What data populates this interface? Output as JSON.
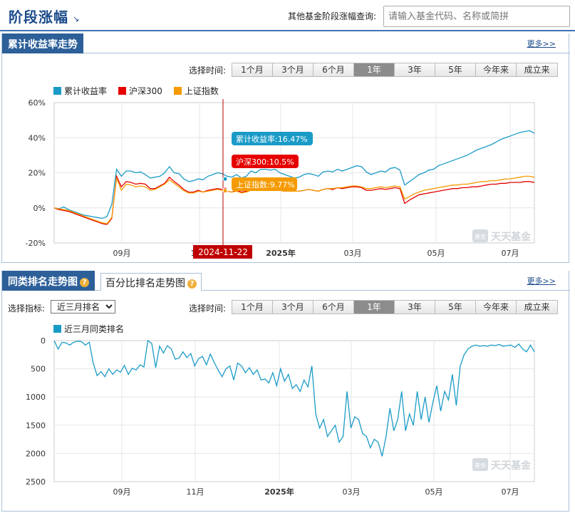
{
  "header": {
    "title": "阶段涨幅",
    "query_label": "其他基金阶段涨幅查询:",
    "query_placeholder": "请输入基金代码、名称或简拼"
  },
  "trend_section": {
    "tab_label": "累计收益率走势",
    "more_label": "更多>>",
    "period_label": "选择时间:",
    "periods": [
      "1个月",
      "3个月",
      "6个月",
      "1年",
      "3年",
      "5年",
      "今年来",
      "成立来"
    ],
    "active_period": "1年",
    "crosshair_date": "2024-11-22",
    "tooltips": [
      {
        "text": "累计收益率:16.47%",
        "color": "#1a9bc7"
      },
      {
        "text": "沪深300:10.5%",
        "color": "#e60000"
      },
      {
        "text": "上证指数:9.77%",
        "color": "#f59a00"
      }
    ]
  },
  "rank_section": {
    "tab_active_label": "同类排名走势图",
    "tab_other_label": "百分比排名走势图",
    "more_label": "更多>>",
    "indicator_label": "选择指标:",
    "indicator_value": "近三月排名",
    "period_label": "选择时间:",
    "periods": [
      "1个月",
      "3个月",
      "6个月",
      "1年",
      "3年",
      "5年",
      "今年来",
      "成立来"
    ],
    "active_period": "1年"
  },
  "watermark": {
    "text": "天天基金",
    "sub": "基金"
  },
  "chart_data": [
    {
      "type": "line",
      "y_unit": "%",
      "ylim": [
        -20,
        60
      ],
      "y_ticks": [
        "60%",
        "40%",
        "20%",
        "0%",
        "-20%"
      ],
      "x_ticks": [
        "09月",
        "11月",
        "2025年",
        "03月",
        "05月",
        "07月"
      ],
      "legend_position": "top-left",
      "series": [
        {
          "name": "累计收益率",
          "color": "#1a9bc7",
          "values": [
            0,
            -0.5,
            0.5,
            -1,
            -2,
            -3,
            -4,
            -4.5,
            -5,
            -5.5,
            -6,
            -5,
            2,
            22,
            18,
            21,
            21,
            20,
            20.5,
            19,
            17,
            17.5,
            18,
            20,
            23.5,
            20,
            19.5,
            16.5,
            15,
            15.5,
            16.5,
            16,
            18,
            19,
            20,
            19.5,
            18,
            17.5,
            19,
            17,
            18,
            21,
            20,
            22,
            22,
            21.5,
            22,
            20,
            19,
            18,
            17,
            17.5,
            19,
            19.5,
            19,
            18,
            20.5,
            21,
            20.5,
            22,
            21,
            22,
            23,
            24,
            23.5,
            20.5,
            19,
            20,
            21,
            20.5,
            22.5,
            23,
            21.5,
            13,
            15,
            17,
            19,
            20,
            21.5,
            22,
            24,
            25,
            26,
            27,
            28,
            29,
            30,
            31.5,
            33,
            34,
            35,
            36,
            37.5,
            39,
            40,
            41,
            42,
            43,
            43.5,
            44,
            42.5
          ]
        },
        {
          "name": "沪深300",
          "color": "#e60000",
          "values": [
            0,
            -1,
            -1.5,
            -2,
            -3,
            -4,
            -5,
            -6,
            -7,
            -8,
            -9,
            -9.5,
            -6,
            18,
            12,
            15,
            14.5,
            13.5,
            14,
            13.5,
            11,
            11,
            12.5,
            14,
            17.5,
            15,
            13,
            10.5,
            9,
            9,
            10,
            9,
            10,
            10.5,
            11,
            10.5,
            9.5,
            9,
            10,
            9,
            9.5,
            10.5,
            11,
            11,
            11,
            10.5,
            11,
            10,
            9.5,
            9.5,
            9.5,
            9.5,
            10,
            10.5,
            10,
            9.5,
            10.5,
            11,
            10.5,
            11.5,
            11,
            11.5,
            12,
            12,
            11.5,
            10,
            10,
            10.5,
            11,
            10.5,
            11,
            11.5,
            11,
            2.5,
            4.5,
            6,
            7.5,
            8,
            8.5,
            9,
            9.5,
            10,
            10.5,
            11,
            11,
            11.5,
            11.5,
            12,
            12,
            12.5,
            13,
            13.5,
            13.5,
            14,
            14,
            14.5,
            14.5,
            14.5,
            15,
            15,
            14.5
          ]
        },
        {
          "name": "上证指数",
          "color": "#f59a00",
          "values": [
            0,
            -0.5,
            -1,
            -1.5,
            -2.5,
            -3.5,
            -4.5,
            -5.5,
            -6.5,
            -7.5,
            -8.5,
            -9,
            -5.5,
            17,
            10,
            13.5,
            13,
            12,
            12.5,
            12,
            10,
            10.5,
            12,
            13.5,
            16,
            14,
            12,
            9.77,
            8.5,
            8.5,
            9.5,
            9,
            9.5,
            10,
            10.5,
            10,
            9.5,
            9,
            9.5,
            8.5,
            9,
            10,
            10.5,
            10.5,
            11,
            10.5,
            11,
            10,
            9.5,
            9.5,
            9.5,
            9.5,
            10,
            10.5,
            10,
            9.5,
            10.5,
            11,
            11,
            11.5,
            11.5,
            12,
            12.5,
            12.5,
            12,
            11,
            11,
            11.5,
            12,
            11.5,
            12,
            12.5,
            12,
            5,
            6.5,
            8,
            9,
            10,
            10.5,
            11,
            11.5,
            12,
            12.5,
            13,
            13,
            13.5,
            13.5,
            14,
            14.5,
            15,
            15,
            15.5,
            15.5,
            16,
            16.5,
            16.5,
            17,
            17.5,
            18,
            18,
            17.5
          ]
        }
      ]
    },
    {
      "type": "line",
      "ylim": [
        0,
        2500
      ],
      "y_inverted": true,
      "y_ticks": [
        "0",
        "500",
        "1000",
        "1500",
        "2000",
        "2500"
      ],
      "x_ticks": [
        "09月",
        "11月",
        "2025年",
        "03月",
        "05月",
        "07月"
      ],
      "legend_position": "top-left",
      "series": [
        {
          "name": "近三月同类排名",
          "color": "#1a9bc7",
          "values": [
            0,
            150,
            30,
            40,
            80,
            30,
            10,
            20,
            80,
            30,
            400,
            620,
            550,
            640,
            500,
            600,
            520,
            560,
            440,
            600,
            490,
            520,
            430,
            470,
            0,
            50,
            480,
            100,
            220,
            90,
            150,
            330,
            310,
            200,
            300,
            230,
            450,
            320,
            280,
            430,
            240,
            390,
            520,
            640,
            500,
            450,
            700,
            400,
            450,
            570,
            480,
            600,
            520,
            700,
            680,
            750,
            570,
            800,
            500,
            720,
            600,
            850,
            780,
            900,
            700,
            820,
            450,
            1300,
            1550,
            1400,
            1700,
            1600,
            1500,
            1800,
            1700,
            900,
            1550,
            1350,
            1400,
            1650,
            1700,
            1900,
            1750,
            1800,
            2050,
            1700,
            1200,
            1600,
            1400,
            900,
            1600,
            1300,
            1500,
            900,
            1400,
            1000,
            1450,
            1100,
            800,
            1250,
            900,
            1050,
            600,
            1150,
            450,
            250,
            150,
            100,
            80,
            100,
            90,
            100,
            80,
            90,
            70,
            100,
            90,
            80,
            120,
            60,
            150,
            200,
            80,
            200
          ]
        }
      ]
    }
  ]
}
